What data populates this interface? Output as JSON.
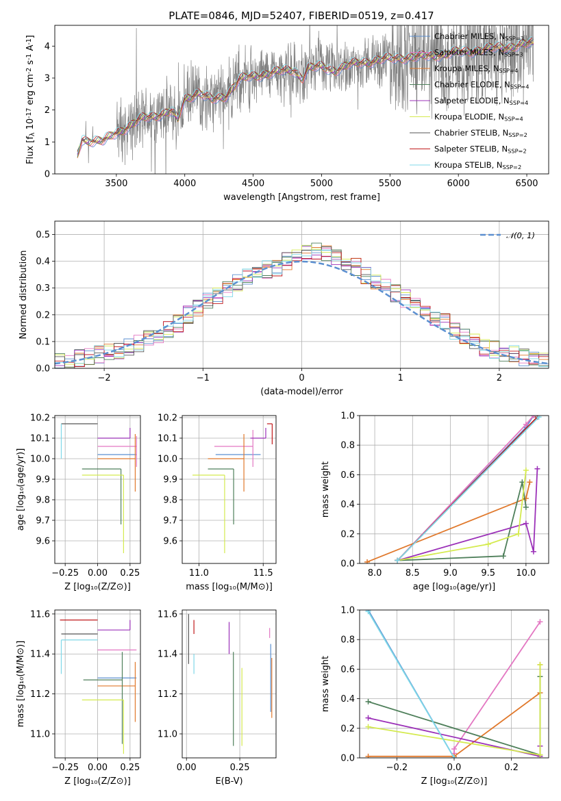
{
  "figure": {
    "title": "PLATE=0846, MJD=52407, FIBERID=0519, z=0.417"
  },
  "legend": [
    "Chabrier MILES, N_SSP=3",
    "Salpeter MILES, N_SSP=3",
    "Kroupa MILES, N_SSP=4",
    "Chabrier ELODIE, N_SSP=4",
    "Salpeter ELODIE, N_SSP=4",
    "Kroupa ELODIE, N_SSP=4",
    "Chabrier STELIB, N_SSP=2",
    "Salpeter STELIB, N_SSP=2",
    "Kroupa STELIB, N_SSP=2"
  ],
  "colors": {
    "Chabrier MILES": "#5b8fd0",
    "Salpeter MILES": "#e377c2",
    "Kroupa MILES": "#e0782b",
    "Chabrier ELODIE": "#4e7f5a",
    "Salpeter ELODIE": "#9b30b8",
    "Kroupa ELODIE": "#d4ea4e",
    "Chabrier STELIB": "#555555",
    "Salpeter STELIB": "#c0181a",
    "Kroupa STELIB": "#7fd8e8",
    "data": "#808080",
    "normal": "#5b8fd0"
  },
  "chart_data": [
    {
      "type": "line",
      "xlabel": "wavelength [Angstrom, rest frame]",
      "ylabel": "Flux [f_λ 10^-17 erg cm^-2 s^-1 A^-1]",
      "xlim": [
        3050,
        6660
      ],
      "ylim": [
        0,
        4.65
      ],
      "xticks": [
        3500,
        4000,
        4500,
        5000,
        5500,
        6000,
        6500
      ],
      "yticks": [
        0,
        1,
        2,
        3,
        4
      ],
      "grid": false,
      "legend_position": "top-right",
      "model_continuum": {
        "x": [
          3215,
          3250,
          3300,
          3400,
          3500,
          3600,
          3700,
          3800,
          3900,
          3950,
          4000,
          4100,
          4200,
          4300,
          4400,
          4500,
          4600,
          4700,
          4800,
          4861,
          4900,
          5000,
          5100,
          5200,
          5300,
          5400,
          5500,
          5600,
          5700,
          5800,
          5900,
          6000,
          6100,
          6200,
          6300,
          6400,
          6500,
          6550
        ],
        "y": [
          0.6,
          1.1,
          1.05,
          1.0,
          1.3,
          1.5,
          1.75,
          1.85,
          1.95,
          1.7,
          2.35,
          2.55,
          2.3,
          2.45,
          2.95,
          3.05,
          3.15,
          3.2,
          3.25,
          3.0,
          3.3,
          3.35,
          3.25,
          3.4,
          3.5,
          3.55,
          3.6,
          3.65,
          3.65,
          3.7,
          3.75,
          3.8,
          3.85,
          3.9,
          3.95,
          4.0,
          4.05,
          4.1
        ]
      }
    },
    {
      "type": "line",
      "xlabel": "(data-model)/error",
      "ylabel": "Normed distribution",
      "xlim": [
        -2.5,
        2.5
      ],
      "ylim": [
        0,
        0.55
      ],
      "xticks": [
        -2,
        -1,
        0,
        1,
        2
      ],
      "yticks": [
        0.0,
        0.1,
        0.2,
        0.3,
        0.4,
        0.5
      ],
      "grid": true,
      "legend": "𝒩(0, 1)",
      "legend_position": "top-right",
      "histogram_bins": [
        -2.5,
        -2.4,
        -2.3,
        -2.2,
        -2.1,
        -2.0,
        -1.9,
        -1.8,
        -1.7,
        -1.6,
        -1.5,
        -1.4,
        -1.3,
        -1.2,
        -1.1,
        -1.0,
        -0.9,
        -0.8,
        -0.7,
        -0.6,
        -0.5,
        -0.4,
        -0.3,
        -0.2,
        -0.1,
        0.0,
        0.1,
        0.2,
        0.3,
        0.4,
        0.5,
        0.6,
        0.7,
        0.8,
        0.9,
        1.0,
        1.1,
        1.2,
        1.3,
        1.4,
        1.5,
        1.6,
        1.7,
        1.8,
        1.9,
        2.0,
        2.1,
        2.2,
        2.3,
        2.4,
        2.5
      ],
      "histogram_base": [
        0.02,
        0.03,
        0.035,
        0.045,
        0.05,
        0.06,
        0.065,
        0.08,
        0.095,
        0.11,
        0.13,
        0.15,
        0.17,
        0.2,
        0.22,
        0.25,
        0.27,
        0.3,
        0.32,
        0.34,
        0.36,
        0.37,
        0.38,
        0.4,
        0.41,
        0.43,
        0.44,
        0.43,
        0.42,
        0.4,
        0.38,
        0.35,
        0.33,
        0.3,
        0.28,
        0.26,
        0.24,
        0.21,
        0.19,
        0.17,
        0.14,
        0.12,
        0.1,
        0.08,
        0.07,
        0.06,
        0.05,
        0.04,
        0.035,
        0.03
      ]
    },
    {
      "type": "scatter",
      "xlabel": "Z [log10(Z/Z⊙)]",
      "ylabel": "age  [log10(age/yr)]",
      "xlim": [
        -0.33,
        0.33
      ],
      "ylim": [
        9.49,
        10.21
      ],
      "xticks": [
        -0.25,
        0.0,
        0.25
      ],
      "yticks": [
        9.6,
        9.7,
        9.8,
        9.9,
        10.0,
        10.1,
        10.2
      ],
      "grid": true,
      "points": [
        {
          "model": "Chabrier MILES",
          "x": 0.3,
          "y": 10.02,
          "xerr": [
            0.3,
            0.0
          ],
          "yerr": [
            0.0,
            0.0
          ]
        },
        {
          "model": "Salpeter MILES",
          "x": 0.3,
          "y": 10.06,
          "xerr": [
            0.3,
            0.0
          ],
          "yerr": [
            0.1,
            0.05
          ]
        },
        {
          "model": "Kroupa MILES",
          "x": 0.29,
          "y": 10.0,
          "xerr": [
            0.29,
            0.0
          ],
          "yerr": [
            0.16,
            0.12
          ]
        },
        {
          "model": "Chabrier ELODIE",
          "x": 0.18,
          "y": 9.95,
          "xerr": [
            0.3,
            0.0
          ],
          "yerr": [
            0.27,
            0.0
          ]
        },
        {
          "model": "Salpeter ELODIE",
          "x": 0.25,
          "y": 10.1,
          "xerr": [
            0.25,
            0.0
          ],
          "yerr": [
            0.0,
            0.05
          ]
        },
        {
          "model": "Kroupa ELODIE",
          "x": 0.2,
          "y": 9.92,
          "xerr": [
            0.32,
            0.0
          ],
          "yerr": [
            0.38,
            0.0
          ]
        },
        {
          "model": "Chabrier STELIB",
          "x": -0.28,
          "y": 10.17,
          "xerr": [
            0.0,
            0.28
          ],
          "yerr": [
            0.0,
            0.0
          ]
        },
        {
          "model": "Kroupa STELIB",
          "x": -0.28,
          "y": 10.17,
          "xerr": [
            0.0,
            0.0
          ],
          "yerr": [
            0.17,
            0.0
          ]
        }
      ]
    },
    {
      "type": "scatter",
      "xlabel": "mass [log10(M/M⊙)]",
      "ylabel": "",
      "xlim": [
        10.87,
        11.6
      ],
      "ylim": [
        9.49,
        10.21
      ],
      "xticks": [
        11.0,
        11.5
      ],
      "yticks": [
        9.6,
        9.7,
        9.8,
        9.9,
        10.0,
        10.1,
        10.2
      ],
      "grid": true,
      "points": [
        {
          "model": "Chabrier MILES",
          "x": 11.48,
          "y": 10.02,
          "xerr": [
            0.35,
            0.0
          ],
          "yerr": [
            0.0,
            0.0
          ]
        },
        {
          "model": "Salpeter MILES",
          "x": 11.42,
          "y": 10.06,
          "xerr": [
            0.3,
            0.0
          ],
          "yerr": [
            0.1,
            0.08
          ]
        },
        {
          "model": "Kroupa MILES",
          "x": 11.35,
          "y": 10.0,
          "xerr": [
            0.28,
            0.0
          ],
          "yerr": [
            0.16,
            0.12
          ]
        },
        {
          "model": "Chabrier ELODIE",
          "x": 11.27,
          "y": 9.95,
          "xerr": [
            0.2,
            0.0
          ],
          "yerr": [
            0.27,
            0.0
          ]
        },
        {
          "model": "Salpeter ELODIE",
          "x": 11.52,
          "y": 10.1,
          "xerr": [
            0.12,
            0.0
          ],
          "yerr": [
            0.0,
            0.05
          ]
        },
        {
          "model": "Kroupa ELODIE",
          "x": 11.2,
          "y": 9.92,
          "xerr": [
            0.25,
            0.0
          ],
          "yerr": [
            0.38,
            0.0
          ]
        },
        {
          "model": "Chabrier STELIB",
          "x": 11.55,
          "y": 10.17,
          "xerr": [
            0.0,
            0.0
          ],
          "yerr": [
            0.0,
            0.0
          ]
        },
        {
          "model": "Salpeter STELIB",
          "x": 11.57,
          "y": 10.17,
          "xerr": [
            0.04,
            0.0
          ],
          "yerr": [
            0.1,
            0.0
          ]
        }
      ]
    },
    {
      "type": "line",
      "xlabel": "age  [log10(age/yr)]",
      "ylabel": "mass weight",
      "xlim": [
        7.8,
        10.3
      ],
      "ylim": [
        0.0,
        1.0
      ],
      "xticks": [
        8.0,
        8.5,
        9.0,
        9.5,
        10.0
      ],
      "yticks": [
        0.0,
        0.2,
        0.4,
        0.6,
        0.8,
        1.0
      ],
      "grid": true,
      "series": [
        {
          "model": "Chabrier MILES",
          "x": [
            8.3,
            10.0,
            10.1
          ],
          "y": [
            0.02,
            0.92,
            1.0
          ]
        },
        {
          "model": "Salpeter MILES",
          "x": [
            8.3,
            10.0,
            10.1
          ],
          "y": [
            0.02,
            0.94,
            1.0
          ]
        },
        {
          "model": "Kroupa MILES",
          "x": [
            7.9,
            10.0,
            10.05
          ],
          "y": [
            0.01,
            0.44,
            0.55
          ]
        },
        {
          "model": "Chabrier ELODIE",
          "x": [
            8.3,
            9.7,
            9.95,
            10.0
          ],
          "y": [
            0.02,
            0.05,
            0.55,
            0.38
          ]
        },
        {
          "model": "Salpeter ELODIE",
          "x": [
            8.3,
            10.0,
            10.1,
            10.15
          ],
          "y": [
            0.02,
            0.27,
            0.08,
            0.64
          ]
        },
        {
          "model": "Kroupa ELODIE",
          "x": [
            8.3,
            9.5,
            9.9,
            10.0
          ],
          "y": [
            0.02,
            0.13,
            0.2,
            0.63
          ]
        },
        {
          "model": "Chabrier STELIB",
          "x": [
            8.3,
            10.15
          ],
          "y": [
            0.02,
            0.99
          ]
        },
        {
          "model": "Salpeter STELIB",
          "x": [
            8.3,
            10.15
          ],
          "y": [
            0.02,
            0.99
          ]
        },
        {
          "model": "Kroupa STELIB",
          "x": [
            8.3,
            10.17
          ],
          "y": [
            0.02,
            0.99
          ]
        }
      ]
    },
    {
      "type": "scatter",
      "xlabel": "Z [log10(Z/Z⊙)]",
      "ylabel": "mass [log10(M/M⊙)]",
      "xlim": [
        -0.33,
        0.33
      ],
      "ylim": [
        10.88,
        11.62
      ],
      "xticks": [
        -0.25,
        0.0,
        0.25
      ],
      "yticks": [
        11.0,
        11.2,
        11.4,
        11.6
      ],
      "grid": true,
      "points": [
        {
          "model": "Chabrier MILES",
          "x": 0.3,
          "y": 11.28,
          "xerr": [
            0.3,
            0.0
          ],
          "yerr": [
            0.0,
            0.0
          ]
        },
        {
          "model": "Salpeter MILES",
          "x": 0.3,
          "y": 11.42,
          "xerr": [
            0.3,
            0.0
          ],
          "yerr": [
            0.0,
            0.0
          ]
        },
        {
          "model": "Kroupa MILES",
          "x": 0.29,
          "y": 11.24,
          "xerr": [
            0.29,
            0.0
          ],
          "yerr": [
            0.18,
            0.12
          ]
        },
        {
          "model": "Chabrier ELODIE",
          "x": 0.19,
          "y": 11.27,
          "xerr": [
            0.3,
            0.0
          ],
          "yerr": [
            0.32,
            0.14
          ]
        },
        {
          "model": "Salpeter ELODIE",
          "x": 0.25,
          "y": 11.52,
          "xerr": [
            0.25,
            0.0
          ],
          "yerr": [
            0.0,
            0.05
          ]
        },
        {
          "model": "Kroupa ELODIE",
          "x": 0.2,
          "y": 11.17,
          "xerr": [
            0.32,
            0.0
          ],
          "yerr": [
            0.27,
            0.0
          ]
        },
        {
          "model": "Chabrier STELIB",
          "x": -0.28,
          "y": 11.5,
          "xerr": [
            0.0,
            0.28
          ],
          "yerr": [
            0.0,
            0.0
          ]
        },
        {
          "model": "Salpeter STELIB",
          "x": -0.29,
          "y": 11.57,
          "xerr": [
            0.0,
            0.29
          ],
          "yerr": [
            0.0,
            0.0
          ]
        },
        {
          "model": "Kroupa STELIB",
          "x": -0.28,
          "y": 11.47,
          "xerr": [
            0.0,
            0.28
          ],
          "yerr": [
            0.17,
            0.0
          ]
        }
      ]
    },
    {
      "type": "scatter",
      "xlabel": "E(B-V)",
      "ylabel": "",
      "xlim": [
        -0.02,
        0.42
      ],
      "ylim": [
        10.88,
        11.62
      ],
      "xticks": [
        0.0,
        0.25
      ],
      "yticks": [
        11.0,
        11.2,
        11.4,
        11.6
      ],
      "grid": true,
      "points": [
        {
          "model": "Chabrier STELIB",
          "x": 0.01,
          "y": 11.4,
          "yerr": [
            0.05,
            0.2
          ]
        },
        {
          "model": "Salpeter STELIB",
          "x": 0.035,
          "y": 11.52,
          "yerr": [
            0.02,
            0.05
          ]
        },
        {
          "model": "Kroupa STELIB",
          "x": 0.035,
          "y": 11.35,
          "yerr": [
            0.05,
            0.05
          ]
        },
        {
          "model": "Chabrier ELODIE",
          "x": 0.22,
          "y": 11.17,
          "yerr": [
            0.23,
            0.24
          ]
        },
        {
          "model": "Salpeter ELODIE",
          "x": 0.2,
          "y": 11.5,
          "yerr": [
            0.1,
            0.06
          ]
        },
        {
          "model": "Kroupa ELODIE",
          "x": 0.26,
          "y": 11.1,
          "yerr": [
            0.16,
            0.23
          ]
        },
        {
          "model": "Salpeter MILES",
          "x": 0.39,
          "y": 11.48,
          "yerr": [
            0.0,
            0.05
          ]
        },
        {
          "model": "Kroupa MILES",
          "x": 0.4,
          "y": 11.3,
          "yerr": [
            0.22,
            0.08
          ]
        },
        {
          "model": "Chabrier MILES",
          "x": 0.395,
          "y": 11.28,
          "yerr": [
            0.17,
            0.17
          ]
        }
      ]
    },
    {
      "type": "line",
      "xlabel": "Z [log10(Z/Z⊙)]",
      "ylabel": "mass weight",
      "xlim": [
        -0.33,
        0.33
      ],
      "ylim": [
        0.0,
        1.0
      ],
      "xticks": [
        -0.2,
        0.0,
        0.2
      ],
      "yticks": [
        0.0,
        0.2,
        0.4,
        0.6,
        0.8,
        1.0
      ],
      "grid": true,
      "series": [
        {
          "model": "Chabrier MILES",
          "x": [
            -0.3,
            0.0
          ],
          "y": [
            1.0,
            0.0
          ]
        },
        {
          "model": "Salpeter MILES",
          "x": [
            0.0,
            0.0,
            0.3
          ],
          "y": [
            0.03,
            0.06,
            0.92
          ]
        },
        {
          "model": "Kroupa MILES",
          "x": [
            -0.3,
            0.0,
            0.3,
            0.3
          ],
          "y": [
            0.01,
            0.01,
            0.44,
            0.63
          ]
        },
        {
          "model": "Chabrier ELODIE",
          "x": [
            -0.3,
            0.3,
            0.3
          ],
          "y": [
            0.38,
            0.02,
            0.55
          ]
        },
        {
          "model": "Salpeter ELODIE",
          "x": [
            -0.3,
            0.3,
            0.3
          ],
          "y": [
            0.27,
            0.01,
            0.08
          ]
        },
        {
          "model": "Kroupa ELODIE",
          "x": [
            -0.3,
            0.3,
            0.3
          ],
          "y": [
            0.21,
            0.02,
            0.63
          ]
        },
        {
          "model": "Kroupa STELIB",
          "x": [
            -0.3,
            0.0
          ],
          "y": [
            0.99,
            0.0
          ]
        }
      ]
    }
  ]
}
